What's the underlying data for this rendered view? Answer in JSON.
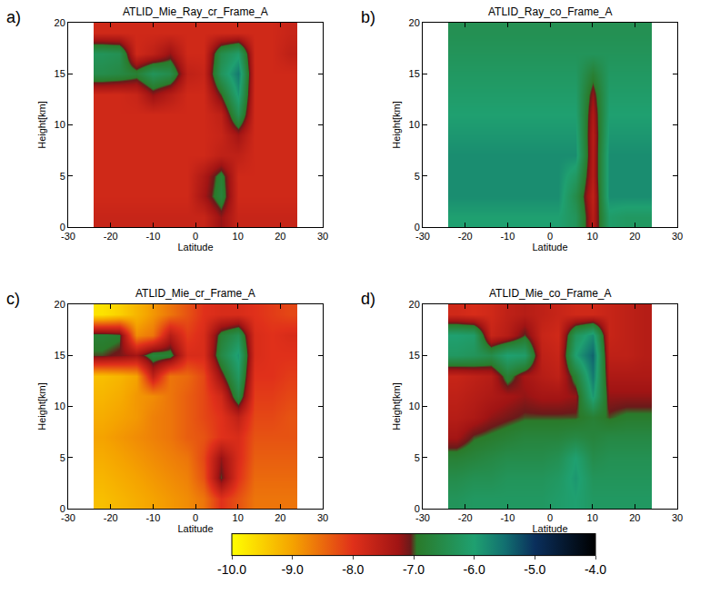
{
  "chart_data": {
    "type": "heatmap_grid",
    "zlim": [
      -10,
      -4
    ],
    "zticks": [
      {
        "value": -10,
        "label": "-10.0"
      },
      {
        "value": -9,
        "label": "-9.0"
      },
      {
        "value": -8,
        "label": "-8.0"
      },
      {
        "value": -7,
        "label": "-7.0"
      },
      {
        "value": -6,
        "label": "-6.0"
      },
      {
        "value": -5,
        "label": "-5.0"
      },
      {
        "value": -4,
        "label": "-4.0"
      }
    ],
    "panels": [
      {
        "type": "heatmap",
        "label": "a)",
        "title": "ATLID_Mie_Ray_cr_Frame_A",
        "x_label": "Latitude",
        "y_label": "Height[km]",
        "xlim": [
          -30,
          30
        ],
        "xticks": [
          -30,
          -20,
          -10,
          0,
          10,
          20,
          30
        ],
        "ylim": [
          0,
          20
        ],
        "yticks": [
          0,
          5,
          10,
          15,
          20
        ],
        "x": [
          -22,
          -18,
          -14,
          -10,
          -6,
          -2,
          2,
          6,
          10,
          14,
          18,
          22
        ],
        "y": [
          1,
          3,
          5,
          7,
          9,
          11,
          13,
          15,
          17,
          19
        ],
        "z": [
          [
            -7.7,
            -7.7,
            -7.7,
            -7.7,
            -7.7,
            -7.7,
            -7.7,
            -7.2,
            -7.7,
            -7.7,
            -7.7,
            -7.7
          ],
          [
            -7.8,
            -7.8,
            -7.8,
            -7.8,
            -7.8,
            -7.8,
            -7.3,
            -6.7,
            -7.8,
            -7.8,
            -7.8,
            -7.8
          ],
          [
            -7.8,
            -7.8,
            -7.8,
            -7.8,
            -7.8,
            -7.8,
            -7.4,
            -6.8,
            -7.8,
            -7.8,
            -7.8,
            -7.8
          ],
          [
            -7.8,
            -7.8,
            -7.8,
            -7.8,
            -7.8,
            -7.8,
            -7.8,
            -7.6,
            -7.6,
            -7.8,
            -7.8,
            -7.8
          ],
          [
            -7.8,
            -7.8,
            -7.8,
            -7.8,
            -7.8,
            -7.8,
            -7.8,
            -7.7,
            -7.3,
            -7.8,
            -7.8,
            -7.8
          ],
          [
            -7.8,
            -7.8,
            -7.8,
            -7.8,
            -7.8,
            -7.8,
            -7.8,
            -7.6,
            -6.4,
            -7.8,
            -7.8,
            -7.8
          ],
          [
            -7.8,
            -7.8,
            -7.7,
            -7.2,
            -7.5,
            -7.8,
            -7.8,
            -7.0,
            -5.9,
            -7.8,
            -7.8,
            -7.8
          ],
          [
            -6.5,
            -6.6,
            -6.8,
            -6.3,
            -6.5,
            -7.6,
            -7.7,
            -6.3,
            -5.6,
            -7.8,
            -7.8,
            -7.8
          ],
          [
            -6.3,
            -6.4,
            -7.8,
            -7.6,
            -7.2,
            -7.8,
            -7.8,
            -6.5,
            -6.1,
            -7.8,
            -7.8,
            -7.6
          ],
          [
            -7.8,
            -7.8,
            -7.8,
            -7.8,
            -7.8,
            -7.8,
            -7.8,
            -7.8,
            -7.8,
            -7.8,
            -7.8,
            -7.7
          ]
        ]
      },
      {
        "type": "heatmap",
        "label": "b)",
        "title": "ATLID_Ray_co_Frame_A",
        "x_label": "Latitude",
        "y_label": "Height[km]",
        "xlim": [
          -30,
          30
        ],
        "xticks": [
          -30,
          -20,
          -10,
          0,
          10,
          20,
          30
        ],
        "ylim": [
          0,
          20
        ],
        "yticks": [
          0,
          5,
          10,
          15,
          20
        ],
        "x": [
          -22,
          -18,
          -14,
          -10,
          -6,
          -2,
          2,
          6,
          10,
          14,
          18,
          22
        ],
        "y": [
          1,
          3,
          5,
          7,
          9,
          11,
          13,
          15,
          17,
          19
        ],
        "z": [
          [
            -6.0,
            -6.0,
            -6.0,
            -6.0,
            -6.0,
            -6.0,
            -6.0,
            -6.3,
            -7.5,
            -6.1,
            -6.2,
            -6.2
          ],
          [
            -5.8,
            -5.8,
            -5.8,
            -5.8,
            -5.8,
            -5.8,
            -5.8,
            -6.5,
            -7.6,
            -5.8,
            -5.8,
            -5.8
          ],
          [
            -5.8,
            -5.8,
            -5.8,
            -5.8,
            -5.8,
            -5.8,
            -5.8,
            -6.2,
            -7.5,
            -5.8,
            -5.8,
            -5.8
          ],
          [
            -5.8,
            -5.8,
            -5.8,
            -5.8,
            -5.8,
            -5.8,
            -5.8,
            -5.8,
            -7.5,
            -5.8,
            -5.8,
            -5.8
          ],
          [
            -5.9,
            -5.9,
            -5.9,
            -5.9,
            -5.9,
            -5.9,
            -5.9,
            -5.9,
            -7.5,
            -5.9,
            -5.9,
            -5.9
          ],
          [
            -6.0,
            -6.0,
            -6.0,
            -6.0,
            -6.0,
            -6.0,
            -6.0,
            -6.0,
            -7.4,
            -6.0,
            -6.0,
            -6.0
          ],
          [
            -6.1,
            -6.1,
            -6.1,
            -6.1,
            -6.1,
            -6.1,
            -6.1,
            -6.1,
            -7.2,
            -6.1,
            -6.1,
            -6.1
          ],
          [
            -6.2,
            -6.2,
            -6.2,
            -6.2,
            -6.2,
            -6.2,
            -6.2,
            -6.2,
            -6.8,
            -6.2,
            -6.2,
            -6.2
          ],
          [
            -6.3,
            -6.3,
            -6.3,
            -6.3,
            -6.3,
            -6.3,
            -6.3,
            -6.3,
            -6.3,
            -6.3,
            -6.3,
            -6.3
          ],
          [
            -6.4,
            -6.4,
            -6.4,
            -6.4,
            -6.4,
            -6.4,
            -6.4,
            -6.4,
            -6.4,
            -6.4,
            -6.4,
            -6.4
          ]
        ]
      },
      {
        "type": "heatmap",
        "label": "c)",
        "title": "ATLID_Mie_cr_Frame_A",
        "x_label": "Latitude",
        "y_label": "Height[km]",
        "xlim": [
          -30,
          30
        ],
        "xticks": [
          -30,
          -20,
          -10,
          0,
          10,
          20,
          30
        ],
        "ylim": [
          0,
          20
        ],
        "yticks": [
          0,
          5,
          10,
          15,
          20
        ],
        "x": [
          -22,
          -18,
          -14,
          -10,
          -6,
          -2,
          2,
          6,
          10,
          14,
          18,
          22
        ],
        "y": [
          1,
          3,
          5,
          7,
          9,
          11,
          13,
          15,
          17,
          19
        ],
        "z": [
          [
            -9.3,
            -9.2,
            -9.1,
            -9.0,
            -8.9,
            -8.8,
            -8.6,
            -8.0,
            -8.3,
            -8.6,
            -8.6,
            -8.6
          ],
          [
            -9.2,
            -9.1,
            -9.0,
            -8.9,
            -8.8,
            -8.7,
            -8.3,
            -7.0,
            -8.0,
            -8.5,
            -8.5,
            -8.5
          ],
          [
            -9.1,
            -9.0,
            -8.9,
            -8.8,
            -8.7,
            -8.6,
            -8.2,
            -7.2,
            -7.9,
            -8.4,
            -8.4,
            -8.4
          ],
          [
            -9.0,
            -8.9,
            -8.8,
            -8.7,
            -8.6,
            -8.4,
            -8.3,
            -8.0,
            -7.9,
            -8.3,
            -8.3,
            -8.3
          ],
          [
            -9.1,
            -9.0,
            -8.9,
            -8.7,
            -8.6,
            -8.4,
            -8.2,
            -8.0,
            -7.6,
            -8.2,
            -8.2,
            -8.3
          ],
          [
            -9.2,
            -9.1,
            -8.9,
            -8.8,
            -8.6,
            -8.4,
            -8.2,
            -7.8,
            -6.6,
            -8.1,
            -8.1,
            -8.2
          ],
          [
            -9.3,
            -9.2,
            -9.0,
            -7.6,
            -8.6,
            -8.5,
            -8.2,
            -7.2,
            -6.2,
            -8.0,
            -8.0,
            -8.1
          ],
          [
            -7.0,
            -7.1,
            -7.3,
            -6.7,
            -6.8,
            -7.9,
            -7.9,
            -6.6,
            -5.9,
            -7.9,
            -8.0,
            -8.0
          ],
          [
            -6.8,
            -6.9,
            -8.8,
            -8.6,
            -7.5,
            -8.1,
            -7.9,
            -6.8,
            -6.4,
            -7.9,
            -8.0,
            -7.9
          ],
          [
            -9.7,
            -9.5,
            -9.2,
            -8.9,
            -8.6,
            -8.3,
            -8.0,
            -7.9,
            -7.9,
            -8.0,
            -8.1,
            -8.2
          ]
        ]
      },
      {
        "type": "heatmap",
        "label": "d)",
        "title": "ATLID_Mie_co_Frame_A",
        "x_label": "Latitude",
        "y_label": "Height[km]",
        "xlim": [
          -30,
          30
        ],
        "xticks": [
          -30,
          -20,
          -10,
          0,
          10,
          20,
          30
        ],
        "ylim": [
          0,
          20
        ],
        "yticks": [
          0,
          5,
          10,
          15,
          20
        ],
        "x": [
          -22,
          -18,
          -14,
          -10,
          -6,
          -2,
          2,
          6,
          10,
          14,
          18,
          22
        ],
        "y": [
          1,
          3,
          5,
          7,
          9,
          11,
          13,
          15,
          17,
          19
        ],
        "z": [
          [
            -6.3,
            -6.2,
            -6.2,
            -6.2,
            -6.2,
            -6.2,
            -6.1,
            -6.0,
            -6.2,
            -6.2,
            -6.2,
            -6.2
          ],
          [
            -6.5,
            -6.4,
            -6.4,
            -6.3,
            -6.3,
            -6.3,
            -6.2,
            -5.9,
            -6.3,
            -6.3,
            -6.3,
            -6.3
          ],
          [
            -6.8,
            -6.7,
            -6.6,
            -6.5,
            -6.5,
            -6.5,
            -6.4,
            -6.0,
            -6.5,
            -6.4,
            -6.4,
            -6.4
          ],
          [
            -7.3,
            -7.0,
            -6.9,
            -6.8,
            -6.7,
            -6.7,
            -6.7,
            -6.6,
            -6.7,
            -6.6,
            -6.6,
            -6.6
          ],
          [
            -7.5,
            -7.4,
            -7.2,
            -7.1,
            -7.0,
            -7.0,
            -7.0,
            -7.0,
            -6.8,
            -7.0,
            -6.9,
            -6.9
          ],
          [
            -7.6,
            -7.5,
            -7.4,
            -7.3,
            -7.2,
            -7.3,
            -7.3,
            -7.2,
            -5.9,
            -7.2,
            -7.2,
            -7.2
          ],
          [
            -7.7,
            -7.6,
            -7.5,
            -6.8,
            -7.3,
            -7.5,
            -7.6,
            -6.8,
            -5.6,
            -7.4,
            -7.4,
            -7.4
          ],
          [
            -6.2,
            -6.3,
            -6.5,
            -6.0,
            -6.1,
            -7.6,
            -7.7,
            -6.0,
            -5.4,
            -7.6,
            -7.6,
            -7.5
          ],
          [
            -6.0,
            -6.1,
            -7.7,
            -7.5,
            -7.0,
            -7.7,
            -7.8,
            -6.3,
            -5.8,
            -7.7,
            -7.6,
            -7.5
          ],
          [
            -7.8,
            -7.9,
            -7.8,
            -7.6,
            -7.5,
            -7.6,
            -7.7,
            -7.8,
            -7.8,
            -7.7,
            -7.6,
            -7.5
          ]
        ]
      }
    ]
  }
}
